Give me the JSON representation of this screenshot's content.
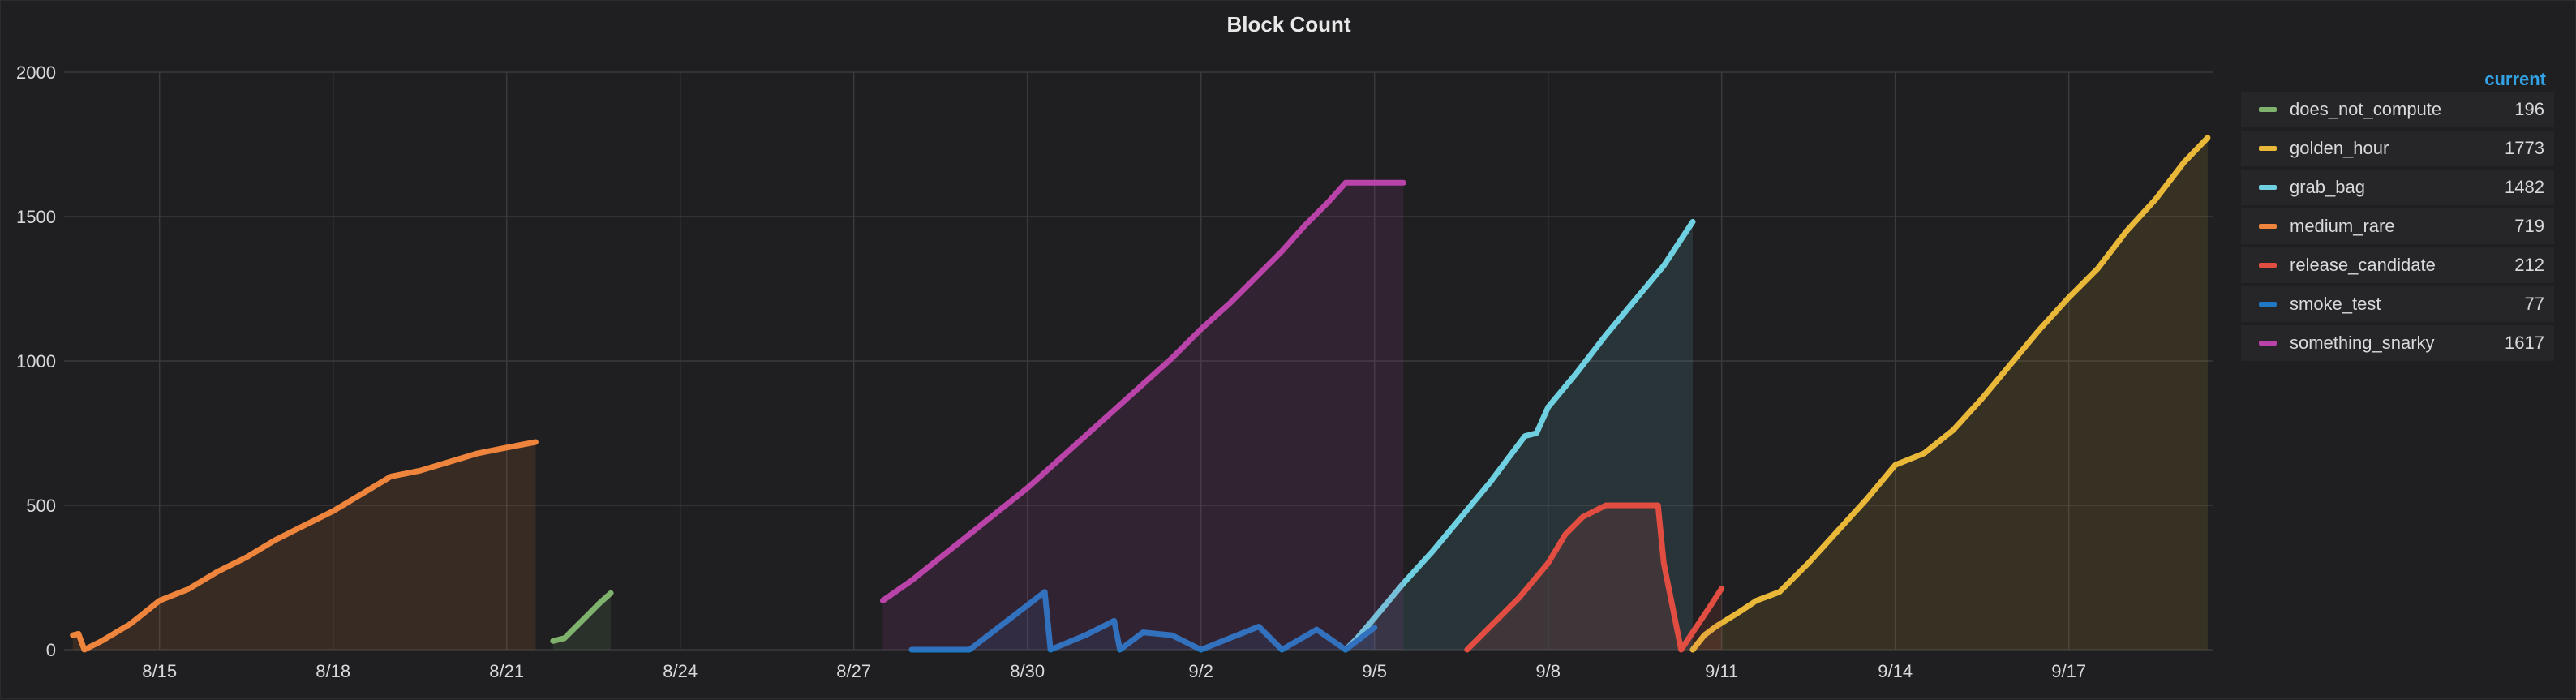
{
  "chart_data": {
    "type": "line",
    "title": "Block Count",
    "ylim": [
      0,
      2000
    ],
    "y_ticks": [
      "0",
      "500",
      "1000",
      "1500",
      "2000"
    ],
    "x_ticks": [
      {
        "label": "8/15",
        "day": 1
      },
      {
        "label": "8/18",
        "day": 4
      },
      {
        "label": "8/21",
        "day": 7
      },
      {
        "label": "8/24",
        "day": 10
      },
      {
        "label": "8/27",
        "day": 13
      },
      {
        "label": "8/30",
        "day": 16
      },
      {
        "label": "9/2",
        "day": 19
      },
      {
        "label": "9/5",
        "day": 22
      },
      {
        "label": "9/8",
        "day": 25
      },
      {
        "label": "9/11",
        "day": 28
      },
      {
        "label": "9/14",
        "day": 31
      },
      {
        "label": "9/17",
        "day": 34
      }
    ],
    "x_range_days": [
      -0.65,
      36.5
    ],
    "legend_header": "current",
    "legend_placement": "right",
    "grid": true,
    "fill": true,
    "series": [
      {
        "name": "does_not_compute",
        "color": "#7eb26d",
        "current": "196",
        "points": [
          [
            7.8,
            30
          ],
          [
            8.0,
            40
          ],
          [
            8.2,
            80
          ],
          [
            8.4,
            120
          ],
          [
            8.6,
            160
          ],
          [
            8.8,
            196
          ]
        ]
      },
      {
        "name": "golden_hour",
        "color": "#eab839",
        "current": "1773",
        "points": [
          [
            27.5,
            0
          ],
          [
            27.7,
            50
          ],
          [
            27.9,
            80
          ],
          [
            28.3,
            130
          ],
          [
            28.6,
            170
          ],
          [
            29.0,
            200
          ],
          [
            29.5,
            300
          ],
          [
            30.0,
            410
          ],
          [
            30.5,
            520
          ],
          [
            31.0,
            640
          ],
          [
            31.5,
            680
          ],
          [
            32.0,
            760
          ],
          [
            32.5,
            870
          ],
          [
            33.0,
            990
          ],
          [
            33.5,
            1110
          ],
          [
            34.0,
            1220
          ],
          [
            34.5,
            1320
          ],
          [
            35.0,
            1450
          ],
          [
            35.5,
            1560
          ],
          [
            36.0,
            1690
          ],
          [
            36.4,
            1773
          ]
        ]
      },
      {
        "name": "grab_bag",
        "color": "#6ed0e0",
        "current": "1482",
        "points": [
          [
            21.5,
            0
          ],
          [
            21.7,
            40
          ],
          [
            22.0,
            110
          ],
          [
            22.5,
            230
          ],
          [
            23.0,
            340
          ],
          [
            23.5,
            460
          ],
          [
            24.0,
            580
          ],
          [
            24.3,
            660
          ],
          [
            24.6,
            740
          ],
          [
            24.8,
            750
          ],
          [
            25.0,
            840
          ],
          [
            25.5,
            960
          ],
          [
            26.0,
            1090
          ],
          [
            26.5,
            1210
          ],
          [
            27.0,
            1330
          ],
          [
            27.5,
            1482
          ]
        ]
      },
      {
        "name": "medium_rare",
        "color": "#ef843c",
        "current": "719",
        "points": [
          [
            -0.5,
            50
          ],
          [
            -0.4,
            55
          ],
          [
            -0.3,
            0
          ],
          [
            0.0,
            30
          ],
          [
            0.5,
            90
          ],
          [
            1.0,
            170
          ],
          [
            1.5,
            210
          ],
          [
            2.0,
            270
          ],
          [
            2.5,
            320
          ],
          [
            3.0,
            380
          ],
          [
            3.5,
            430
          ],
          [
            4.0,
            480
          ],
          [
            4.5,
            540
          ],
          [
            5.0,
            600
          ],
          [
            5.5,
            620
          ],
          [
            6.0,
            650
          ],
          [
            6.5,
            680
          ],
          [
            7.0,
            700
          ],
          [
            7.5,
            719
          ]
        ]
      },
      {
        "name": "release_candidate",
        "color": "#e24d42",
        "current": "212",
        "points": [
          [
            23.6,
            0
          ],
          [
            24.0,
            80
          ],
          [
            24.5,
            180
          ],
          [
            25.0,
            300
          ],
          [
            25.3,
            400
          ],
          [
            25.6,
            460
          ],
          [
            26.0,
            500
          ],
          [
            26.4,
            500
          ],
          [
            26.9,
            500
          ],
          [
            27.0,
            300
          ],
          [
            27.3,
            0
          ],
          [
            27.8,
            150
          ],
          [
            28.0,
            212
          ]
        ]
      },
      {
        "name": "smoke_test",
        "color": "#1f78c1",
        "current": "77",
        "points": [
          [
            14.0,
            0
          ],
          [
            15.0,
            0
          ],
          [
            16.3,
            200
          ],
          [
            16.4,
            0
          ],
          [
            17.0,
            50
          ],
          [
            17.5,
            100
          ],
          [
            17.6,
            0
          ],
          [
            18.0,
            60
          ],
          [
            18.5,
            50
          ],
          [
            19.0,
            0
          ],
          [
            20.0,
            80
          ],
          [
            20.4,
            0
          ],
          [
            21.0,
            70
          ],
          [
            21.5,
            0
          ],
          [
            22.0,
            77
          ]
        ]
      },
      {
        "name": "something_snarky",
        "color": "#ba43a9",
        "current": "1617",
        "points": [
          [
            13.5,
            170
          ],
          [
            14.0,
            240
          ],
          [
            14.5,
            320
          ],
          [
            15.0,
            400
          ],
          [
            15.5,
            480
          ],
          [
            16.0,
            560
          ],
          [
            16.5,
            650
          ],
          [
            17.0,
            740
          ],
          [
            17.5,
            830
          ],
          [
            18.0,
            920
          ],
          [
            18.5,
            1010
          ],
          [
            19.0,
            1110
          ],
          [
            19.5,
            1200
          ],
          [
            20.0,
            1300
          ],
          [
            20.4,
            1380
          ],
          [
            20.8,
            1470
          ],
          [
            21.2,
            1550
          ],
          [
            21.5,
            1617
          ],
          [
            22.0,
            1617
          ],
          [
            22.5,
            1617
          ]
        ]
      }
    ]
  }
}
